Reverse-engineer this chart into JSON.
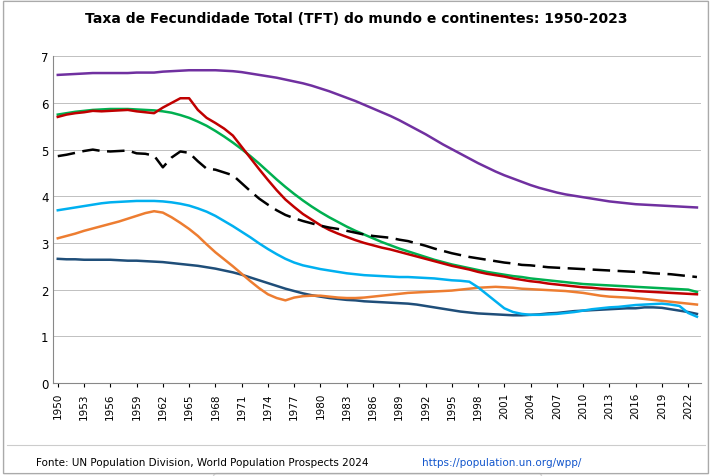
{
  "title": "Taxa de Fecundidade Total (TFT) do mundo e continentes: 1950-2023",
  "fonte": "Fonte: UN Population Division, World Population Prospects 2024 ",
  "fonte_link": "https://population.un.org/wpp/",
  "years": [
    1950,
    1951,
    1952,
    1953,
    1954,
    1955,
    1956,
    1957,
    1958,
    1959,
    1960,
    1961,
    1962,
    1963,
    1964,
    1965,
    1966,
    1967,
    1968,
    1969,
    1970,
    1971,
    1972,
    1973,
    1974,
    1975,
    1976,
    1977,
    1978,
    1979,
    1980,
    1981,
    1982,
    1983,
    1984,
    1985,
    1986,
    1987,
    1988,
    1989,
    1990,
    1991,
    1992,
    1993,
    1994,
    1995,
    1996,
    1997,
    1998,
    1999,
    2000,
    2001,
    2002,
    2003,
    2004,
    2005,
    2006,
    2007,
    2008,
    2009,
    2010,
    2011,
    2012,
    2013,
    2014,
    2015,
    2016,
    2017,
    2018,
    2019,
    2020,
    2021,
    2022,
    2023
  ],
  "mundo": [
    4.86,
    4.89,
    4.93,
    4.97,
    5.0,
    4.97,
    4.96,
    4.97,
    4.98,
    4.92,
    4.91,
    4.87,
    4.62,
    4.83,
    4.96,
    4.93,
    4.75,
    4.59,
    4.57,
    4.51,
    4.45,
    4.28,
    4.11,
    3.95,
    3.82,
    3.7,
    3.6,
    3.53,
    3.47,
    3.42,
    3.37,
    3.33,
    3.3,
    3.26,
    3.22,
    3.18,
    3.15,
    3.13,
    3.11,
    3.07,
    3.04,
    2.99,
    2.94,
    2.88,
    2.83,
    2.78,
    2.74,
    2.7,
    2.67,
    2.64,
    2.61,
    2.58,
    2.56,
    2.53,
    2.52,
    2.5,
    2.48,
    2.47,
    2.46,
    2.45,
    2.44,
    2.43,
    2.42,
    2.41,
    2.4,
    2.39,
    2.38,
    2.37,
    2.35,
    2.34,
    2.33,
    2.31,
    2.29,
    2.27
  ],
  "africa": [
    6.6,
    6.61,
    6.62,
    6.63,
    6.64,
    6.64,
    6.64,
    6.64,
    6.64,
    6.65,
    6.65,
    6.65,
    6.67,
    6.68,
    6.69,
    6.7,
    6.7,
    6.7,
    6.7,
    6.69,
    6.68,
    6.66,
    6.63,
    6.6,
    6.57,
    6.54,
    6.5,
    6.46,
    6.42,
    6.37,
    6.31,
    6.25,
    6.18,
    6.11,
    6.04,
    5.96,
    5.88,
    5.8,
    5.72,
    5.63,
    5.53,
    5.43,
    5.33,
    5.22,
    5.11,
    5.01,
    4.91,
    4.81,
    4.71,
    4.62,
    4.53,
    4.45,
    4.38,
    4.31,
    4.24,
    4.18,
    4.13,
    4.08,
    4.04,
    4.01,
    3.98,
    3.95,
    3.92,
    3.89,
    3.87,
    3.85,
    3.83,
    3.82,
    3.81,
    3.8,
    3.79,
    3.78,
    3.77,
    3.76
  ],
  "alc": [
    5.75,
    5.78,
    5.81,
    5.83,
    5.85,
    5.86,
    5.87,
    5.87,
    5.87,
    5.86,
    5.85,
    5.84,
    5.82,
    5.79,
    5.74,
    5.68,
    5.6,
    5.51,
    5.4,
    5.28,
    5.15,
    5.01,
    4.86,
    4.7,
    4.53,
    4.36,
    4.2,
    4.05,
    3.91,
    3.78,
    3.66,
    3.55,
    3.45,
    3.35,
    3.26,
    3.18,
    3.1,
    3.02,
    2.95,
    2.88,
    2.82,
    2.76,
    2.7,
    2.64,
    2.59,
    2.54,
    2.5,
    2.46,
    2.42,
    2.38,
    2.35,
    2.32,
    2.29,
    2.27,
    2.24,
    2.22,
    2.2,
    2.18,
    2.16,
    2.14,
    2.12,
    2.11,
    2.1,
    2.09,
    2.08,
    2.07,
    2.06,
    2.05,
    2.04,
    2.03,
    2.02,
    2.01,
    2.0,
    1.95
  ],
  "asia": [
    5.7,
    5.75,
    5.78,
    5.8,
    5.83,
    5.82,
    5.83,
    5.84,
    5.85,
    5.82,
    5.8,
    5.78,
    5.9,
    6.0,
    6.1,
    6.1,
    5.85,
    5.68,
    5.57,
    5.45,
    5.3,
    5.06,
    4.82,
    4.58,
    4.35,
    4.13,
    3.93,
    3.77,
    3.62,
    3.5,
    3.38,
    3.28,
    3.2,
    3.13,
    3.06,
    3.0,
    2.95,
    2.9,
    2.86,
    2.81,
    2.76,
    2.71,
    2.66,
    2.61,
    2.56,
    2.51,
    2.47,
    2.43,
    2.38,
    2.34,
    2.31,
    2.28,
    2.24,
    2.21,
    2.18,
    2.16,
    2.13,
    2.11,
    2.09,
    2.07,
    2.05,
    2.04,
    2.02,
    2.01,
    2.0,
    1.99,
    1.97,
    1.96,
    1.95,
    1.94,
    1.93,
    1.92,
    1.91,
    1.9
  ],
  "europa": [
    2.66,
    2.65,
    2.65,
    2.64,
    2.64,
    2.64,
    2.64,
    2.63,
    2.62,
    2.62,
    2.61,
    2.6,
    2.59,
    2.57,
    2.55,
    2.53,
    2.51,
    2.48,
    2.45,
    2.41,
    2.37,
    2.32,
    2.26,
    2.2,
    2.14,
    2.08,
    2.02,
    1.97,
    1.92,
    1.88,
    1.85,
    1.82,
    1.8,
    1.78,
    1.77,
    1.75,
    1.74,
    1.73,
    1.72,
    1.71,
    1.7,
    1.68,
    1.65,
    1.62,
    1.59,
    1.56,
    1.53,
    1.51,
    1.49,
    1.48,
    1.47,
    1.46,
    1.45,
    1.45,
    1.46,
    1.47,
    1.49,
    1.5,
    1.52,
    1.54,
    1.55,
    1.56,
    1.57,
    1.58,
    1.59,
    1.6,
    1.6,
    1.62,
    1.62,
    1.61,
    1.58,
    1.55,
    1.52,
    1.48
  ],
  "america_norte": [
    3.1,
    3.15,
    3.2,
    3.26,
    3.31,
    3.36,
    3.41,
    3.46,
    3.52,
    3.58,
    3.64,
    3.68,
    3.65,
    3.55,
    3.43,
    3.3,
    3.15,
    2.97,
    2.8,
    2.65,
    2.5,
    2.34,
    2.18,
    2.03,
    1.9,
    1.82,
    1.77,
    1.83,
    1.86,
    1.87,
    1.87,
    1.85,
    1.83,
    1.82,
    1.82,
    1.83,
    1.85,
    1.87,
    1.89,
    1.91,
    1.93,
    1.94,
    1.95,
    1.96,
    1.97,
    1.98,
    2.0,
    2.02,
    2.04,
    2.05,
    2.06,
    2.05,
    2.04,
    2.02,
    2.01,
    2.0,
    1.99,
    1.98,
    1.97,
    1.95,
    1.93,
    1.9,
    1.87,
    1.85,
    1.84,
    1.83,
    1.82,
    1.8,
    1.78,
    1.76,
    1.74,
    1.72,
    1.7,
    1.68
  ],
  "oceania": [
    3.7,
    3.73,
    3.76,
    3.79,
    3.82,
    3.85,
    3.87,
    3.88,
    3.89,
    3.9,
    3.9,
    3.9,
    3.89,
    3.87,
    3.84,
    3.8,
    3.74,
    3.67,
    3.58,
    3.47,
    3.36,
    3.24,
    3.12,
    2.99,
    2.87,
    2.76,
    2.66,
    2.58,
    2.52,
    2.48,
    2.44,
    2.41,
    2.38,
    2.35,
    2.33,
    2.31,
    2.3,
    2.29,
    2.28,
    2.27,
    2.27,
    2.26,
    2.25,
    2.24,
    2.22,
    2.2,
    2.19,
    2.17,
    2.05,
    1.9,
    1.75,
    1.6,
    1.52,
    1.48,
    1.46,
    1.46,
    1.47,
    1.48,
    1.5,
    1.52,
    1.55,
    1.58,
    1.6,
    1.62,
    1.63,
    1.65,
    1.67,
    1.68,
    1.69,
    1.7,
    1.68,
    1.65,
    1.5,
    1.42
  ],
  "colors": {
    "mundo": "#000000",
    "africa": "#7030A0",
    "alc": "#00B050",
    "asia": "#C00000",
    "europa": "#1F4E79",
    "america_norte": "#ED7D31",
    "oceania": "#00B0F0"
  },
  "ylim": [
    0,
    7
  ],
  "yticks": [
    0,
    1,
    2,
    3,
    4,
    5,
    6,
    7
  ],
  "background_color": "#FFFFFF"
}
